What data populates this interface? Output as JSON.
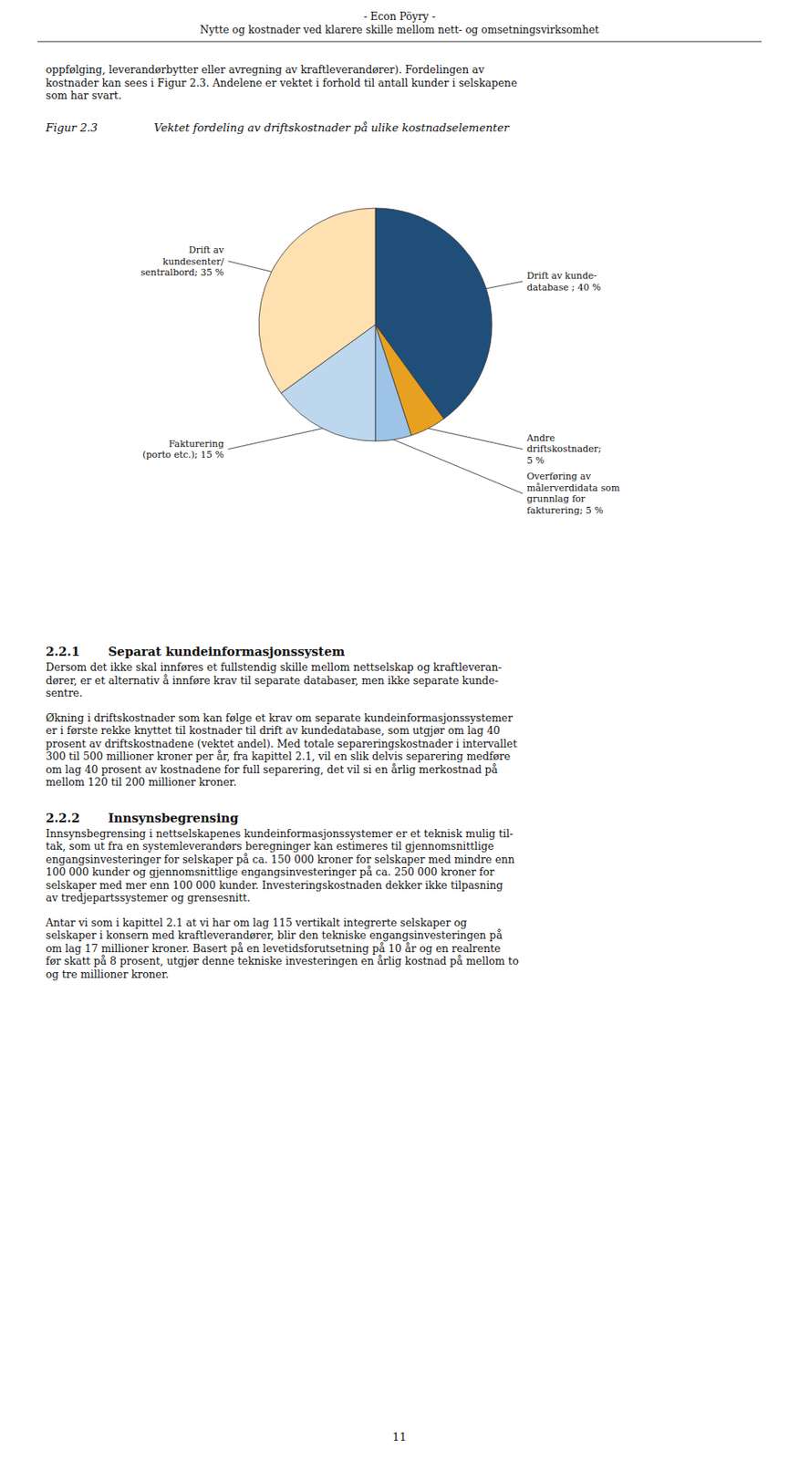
{
  "chart_data": {
    "type": "pie",
    "title": "Vektet fordeling av driftskostnader på ulike kostnadselementer",
    "categories": [
      "Drift av kunde-\ndatabase ; 40 %",
      "Andre\ndriftskostnader;\n5 %",
      "Overføring av\nmålerverdidata som\ngrunnlag for\nfakturering; 5 %",
      "Fakturering\n(porto etc.); 15 %",
      "Drift av\nkundesenter/\nsentralbord; 35 %"
    ],
    "values": [
      40,
      5,
      5,
      15,
      35
    ],
    "colors": [
      "#1F4E79",
      "#E8A020",
      "#9DC3E6",
      "#BDD7EE",
      "#FFE0B0"
    ]
  },
  "page": {
    "header": [
      "- Econ Pöyry -",
      "Nytte og kostnader ved klarere skille mellom nett- og omsetningsvirksomhet"
    ],
    "intro": [
      "oppfølging, leverandørbytter eller avregning av kraftleverandører). Fordelingen av",
      "kostnader kan sees i Figur 2.3. Andelene er vektet i forhold til antall kunder i selskapene",
      "som har svart."
    ],
    "figure_label": "Figur 2.3",
    "sections": [
      {
        "number": "2.2.1",
        "heading": "Separat kundeinformasjonssystem",
        "paragraphs": [
          [
            "Dersom det ikke skal innføres et fullstendig skille mellom nettselskap og kraftleveran-",
            "dører, er et alternativ å innføre krav til separate databaser, men ikke separate kunde-",
            "sentre."
          ],
          [
            "Økning i driftskostnader som kan følge et krav om separate kundeinformasjonssystemer",
            "er i første rekke knyttet til kostnader til drift av kundedatabase, som utgjør om lag 40",
            "prosent av driftskostnadene (vektet andel). Med totale separeringskostnader i intervallet",
            "300 til 500 millioner kroner per år, fra kapittel 2.1, vil en slik delvis separering medføre",
            "om lag 40 prosent av kostnadene for full separering, det vil si en årlig merkostnad på",
            "mellom 120 til 200 millioner kroner."
          ]
        ]
      },
      {
        "number": "2.2.2",
        "heading": "Innsynsbegrensing",
        "paragraphs": [
          [
            "Innsynsbegrensing i nettselskapenes kundeinformasjonssystemer er et teknisk mulig til-",
            "tak, som ut fra en systemleverandørs beregninger kan estimeres til gjennomsnittlige",
            "engangsinvesteringer for selskaper på ca. 150 000 kroner for selskaper med mindre enn",
            "100 000 kunder og gjennomsnittlige engangsinvesteringer på ca. 250 000 kroner for",
            "selskaper med mer enn 100 000 kunder. Investeringskostnaden dekker ikke tilpasning",
            "av tredjepartssystemer og grensesnitt."
          ],
          [
            "Antar vi som i kapittel 2.1 at vi har om lag 115 vertikalt integrerte selskaper og",
            "selskaper i konsern med kraftleverandører, blir den tekniske engangsinvesteringen på",
            "om lag 17 millioner kroner. Basert på en levetidsforutsetning på 10 år og en realrente",
            "før skatt på 8 prosent, utgjør denne tekniske investeringen en årlig kostnad på mellom to",
            "og tre millioner kroner."
          ]
        ]
      }
    ],
    "page_number": "11"
  }
}
